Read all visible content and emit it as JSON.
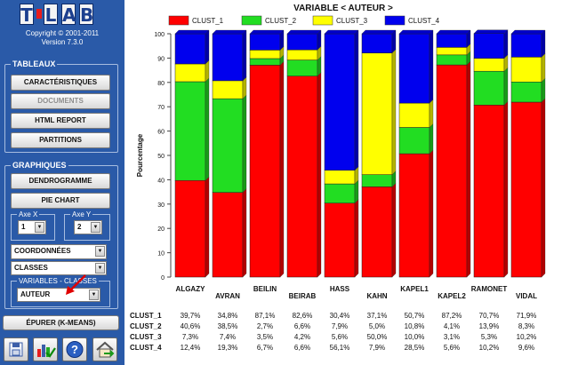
{
  "app": {
    "logo": [
      "T",
      "L",
      "A",
      "B"
    ],
    "copyright": "Copyright © 2001-2011",
    "version": "Version 7.3.0"
  },
  "tableaux": {
    "title": "TABLEAUX",
    "buttons": [
      "CARACTÉRISTIQUES",
      "DOCUMENTS",
      "HTML REPORT",
      "PARTITIONS"
    ]
  },
  "graphiques": {
    "title": "GRAPHIQUES",
    "buttons": [
      "DENDROGRAMME",
      "PIE CHART"
    ],
    "axe_x": {
      "label": "Axe X",
      "value": "1"
    },
    "axe_y": {
      "label": "Axe Y",
      "value": "2"
    },
    "coordonnees": "COORDONNÉES",
    "classes": "CLASSES",
    "variables": {
      "label": "VARIABLES - CLASSES",
      "value": "AUTEUR"
    }
  },
  "epurer": "ÉPURER (K-MEANS)",
  "icons": [
    "save-icon",
    "bar-chart-check-icon",
    "help-icon",
    "home-exit-icon"
  ],
  "colors": {
    "clust1": "#ff0000",
    "clust2": "#22dd22",
    "clust3": "#ffff00",
    "clust4": "#0000ee",
    "sidebar": "#2a5aa8"
  },
  "chart_data": {
    "type": "bar",
    "stacked": true,
    "title": "VARIABLE < AUTEUR >",
    "ylabel": "Pourcentage",
    "xlabel": "",
    "ylim": [
      0,
      100
    ],
    "yticks": [
      0,
      10,
      20,
      30,
      40,
      50,
      60,
      70,
      80,
      90,
      100
    ],
    "legend_position": "top",
    "grid": false,
    "categories": [
      "ALGAZY",
      "AVRAN",
      "BEILIN",
      "BEIRAB",
      "HASS",
      "KAHN",
      "KAPEL1",
      "KAPEL2",
      "RAMONET",
      "VIDAL"
    ],
    "series": [
      {
        "name": "CLUST_1",
        "color": "#ff0000",
        "values": [
          39.7,
          34.8,
          87.1,
          82.6,
          30.4,
          37.1,
          50.7,
          87.2,
          70.7,
          71.9
        ],
        "labels": [
          "39,7%",
          "34,8%",
          "87,1%",
          "82,6%",
          "30,4%",
          "37,1%",
          "50,7%",
          "87,2%",
          "70,7%",
          "71,9%"
        ]
      },
      {
        "name": "CLUST_2",
        "color": "#22dd22",
        "values": [
          40.6,
          38.5,
          2.7,
          6.6,
          7.9,
          5.0,
          10.8,
          4.1,
          13.9,
          8.3
        ],
        "labels": [
          "40,6%",
          "38,5%",
          "2,7%",
          "6,6%",
          "7,9%",
          "5,0%",
          "10,8%",
          "4,1%",
          "13,9%",
          "8,3%"
        ]
      },
      {
        "name": "CLUST_3",
        "color": "#ffff00",
        "values": [
          7.3,
          7.4,
          3.5,
          4.2,
          5.6,
          50.0,
          10.0,
          3.1,
          5.3,
          10.2
        ],
        "labels": [
          "7,3%",
          "7,4%",
          "3,5%",
          "4,2%",
          "5,6%",
          "50,0%",
          "10,0%",
          "3,1%",
          "5,3%",
          "10,2%"
        ]
      },
      {
        "name": "CLUST_4",
        "color": "#0000ee",
        "values": [
          12.4,
          19.3,
          6.7,
          6.6,
          56.1,
          7.9,
          28.5,
          5.6,
          10.2,
          9.6
        ],
        "labels": [
          "12,4%",
          "19,3%",
          "6,7%",
          "6,6%",
          "56,1%",
          "7,9%",
          "28,5%",
          "5,6%",
          "10,2%",
          "9,6%"
        ]
      }
    ]
  }
}
